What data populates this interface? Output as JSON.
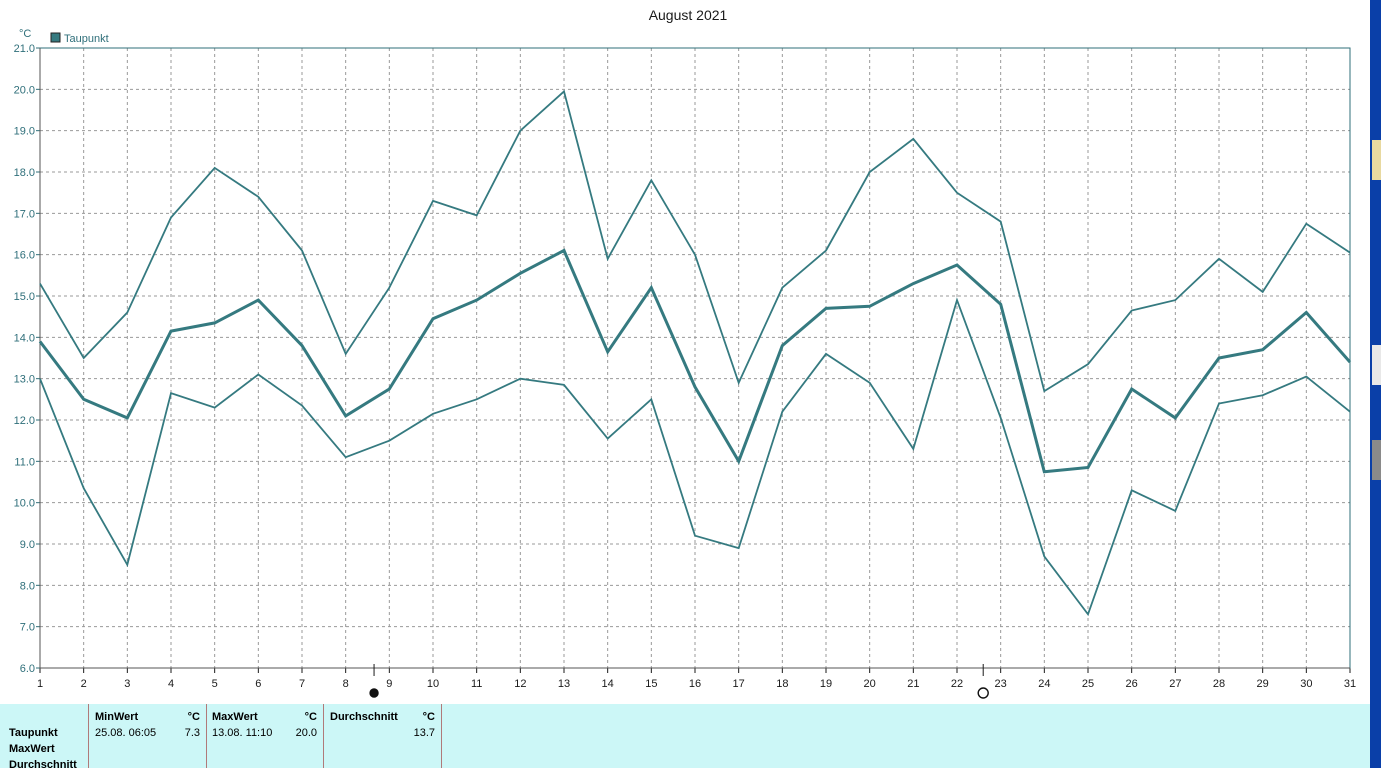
{
  "chart_data": {
    "type": "line",
    "title": "August 2021",
    "ylabel": "°C",
    "ylim": [
      6.0,
      21.0
    ],
    "yticks": [
      "6.0",
      "7.0",
      "8.0",
      "9.0",
      "10.0",
      "11.0",
      "12.0",
      "13.0",
      "14.0",
      "15.0",
      "16.0",
      "17.0",
      "18.0",
      "19.0",
      "20.0",
      "21.0"
    ],
    "x": [
      1,
      2,
      3,
      4,
      5,
      6,
      7,
      8,
      9,
      10,
      11,
      12,
      13,
      14,
      15,
      16,
      17,
      18,
      19,
      20,
      21,
      22,
      23,
      24,
      25,
      26,
      27,
      28,
      29,
      30,
      31
    ],
    "legend": "Taupunkt",
    "grid": true,
    "series": [
      {
        "name": "MaxWert",
        "values": [
          15.3,
          13.5,
          14.6,
          16.9,
          18.1,
          17.4,
          16.1,
          13.6,
          15.2,
          17.3,
          16.95,
          19.0,
          19.95,
          15.9,
          17.8,
          16.0,
          12.9,
          15.2,
          16.1,
          18.0,
          18.8,
          17.5,
          16.8,
          12.7,
          13.35,
          14.65,
          14.9,
          15.9,
          15.1,
          16.75,
          16.05
        ]
      },
      {
        "name": "Durchschnitt",
        "values": [
          13.9,
          12.5,
          12.05,
          14.15,
          14.35,
          14.9,
          13.8,
          12.1,
          12.75,
          14.45,
          14.9,
          15.55,
          16.1,
          13.65,
          15.2,
          12.8,
          11.0,
          13.8,
          14.7,
          14.75,
          15.3,
          15.75,
          14.8,
          10.75,
          10.85,
          12.75,
          12.05,
          13.5,
          13.7,
          14.6,
          13.4
        ]
      },
      {
        "name": "MinWert",
        "values": [
          13.0,
          10.35,
          8.5,
          12.65,
          12.3,
          13.1,
          12.35,
          11.1,
          11.5,
          12.15,
          12.5,
          13.0,
          12.85,
          11.55,
          12.5,
          9.2,
          8.9,
          12.2,
          13.6,
          12.9,
          11.3,
          14.9,
          12.05,
          8.7,
          7.3,
          10.3,
          9.8,
          12.4,
          12.6,
          13.05,
          12.2
        ]
      }
    ],
    "moon_phases": [
      {
        "x": 8.65,
        "phase": "new"
      },
      {
        "x": 22.6,
        "phase": "full"
      }
    ]
  },
  "colors": {
    "line": "#357a80",
    "axis": "#2f6f7a",
    "grid": "#999999",
    "panel": "#ccf7f7"
  },
  "stats": {
    "rows": [
      "Taupunkt",
      "MaxWert",
      "Durchschnitt"
    ],
    "min": {
      "header": "MinWert",
      "unit": "°C",
      "date": "25.08.  06:05",
      "value": "7.3"
    },
    "max": {
      "header": "MaxWert",
      "unit": "°C",
      "date": "13.08.  11:10",
      "value": "20.0"
    },
    "avg": {
      "header": "Durchschnitt",
      "unit": "°C",
      "value": "13.7"
    }
  }
}
